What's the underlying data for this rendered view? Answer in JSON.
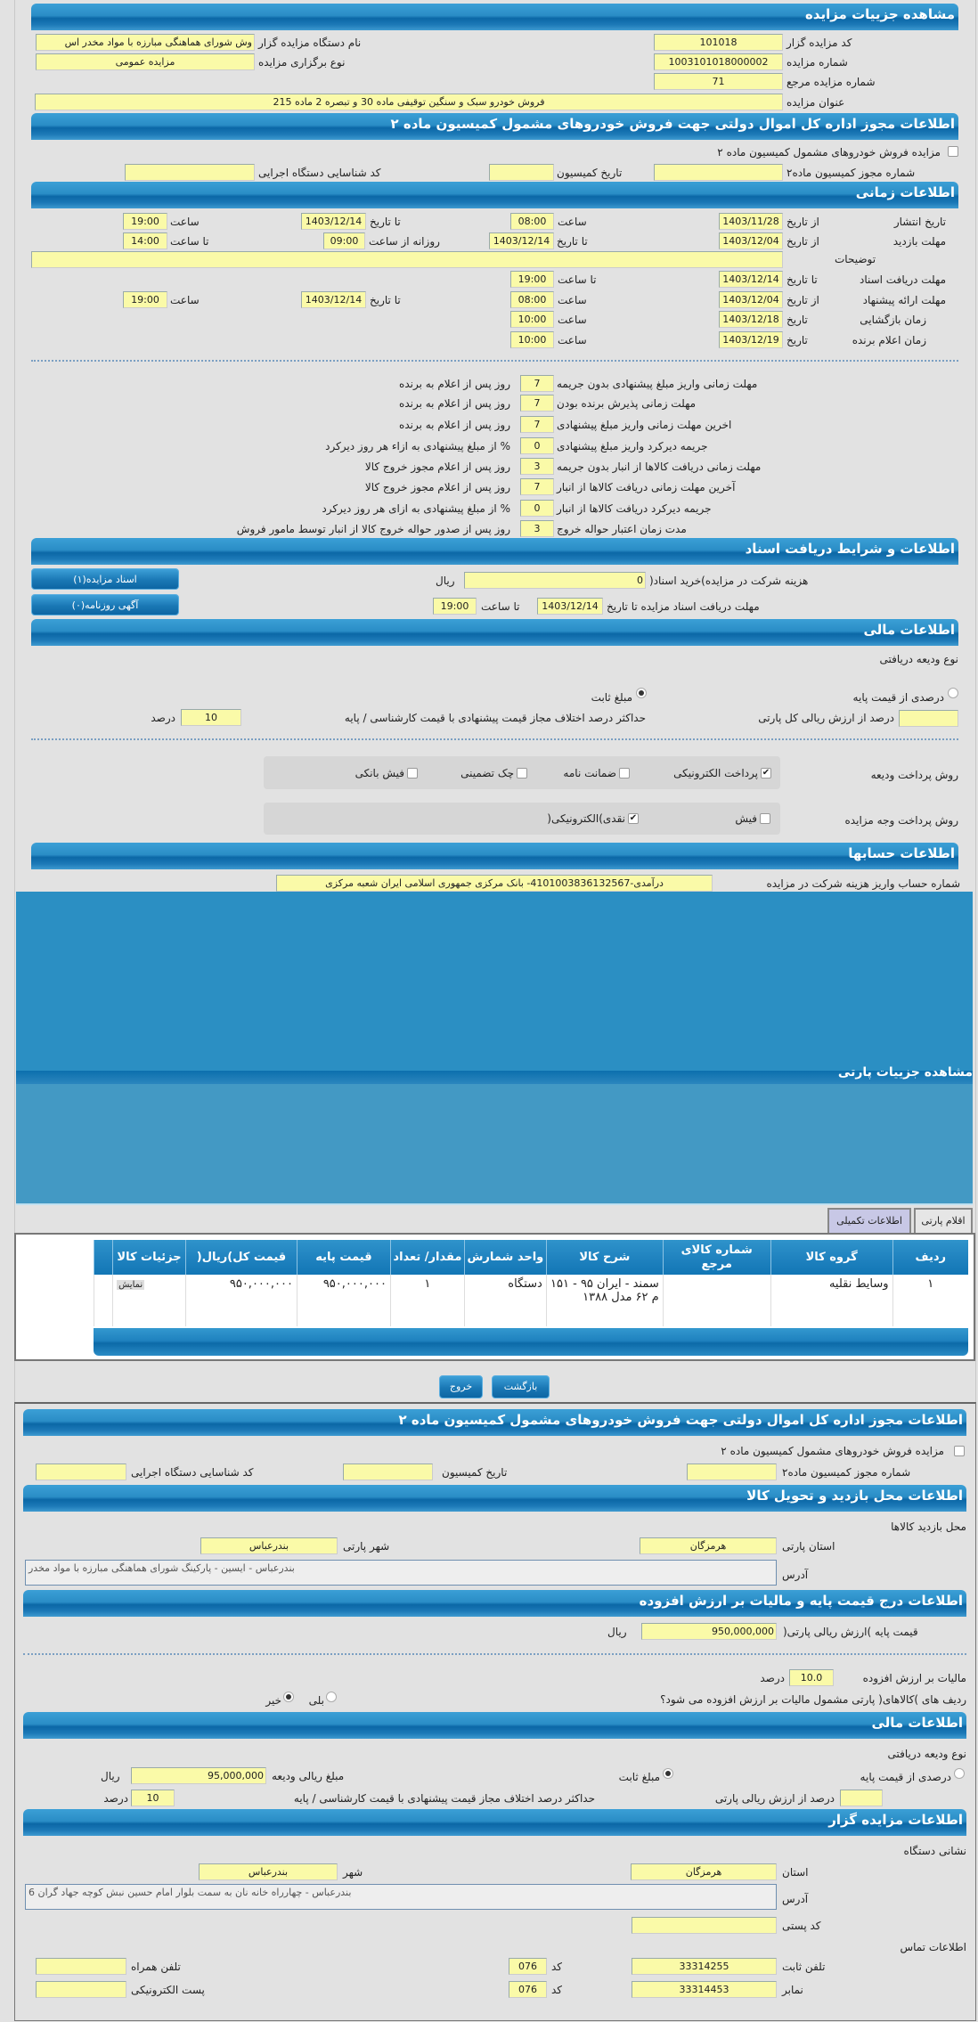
{
  "auction": {
    "header": "مشاهده جزییات مزایده",
    "code_label": "کد مزایده گزار",
    "code": "101018",
    "org_label": "نام دستگاه مزایده گزار",
    "org": "وش شورای هماهنگی مبارزه با مواد مخدر اس",
    "number_label": "شماره مزایده",
    "number": "1003101018000002",
    "type_label": "نوع برگزاری مزایده",
    "type": "مزایده عمومی",
    "ref_label": "شماره مزایده مرجع",
    "ref": "71",
    "title_label": "عنوان مزایده",
    "title": "فروش خودرو سبک و سنگین توقیفی ماده 30 و تبصره 2 ماده 215"
  },
  "permit": {
    "header": "اطلاعات مجوز اداره کل اموال دولتی جهت فروش خودروهای مشمول کمیسیون ماده ۲",
    "checkbox_label": "مزایده فروش خودروهای مشمول کمیسیون ماده ۲",
    "permit_no_label": "شماره مجوز کمیسیون ماده۲",
    "commission_date_label": "تاریخ کمیسیون",
    "exec_code_label": "کد شناسایی دستگاه اجرایی"
  },
  "timing": {
    "header": "اطلاعات زمانی",
    "from_date": "از تاریخ",
    "to_date": "تا تاریخ",
    "time": "ساعت",
    "to_time": "تا ساعت",
    "daily_from": "روزانه از ساعت",
    "date": "تاریخ",
    "publish_label": "تاریخ انتشار",
    "publish_from": "1403/11/28",
    "publish_from_time": "08:00",
    "publish_to": "1403/12/14",
    "publish_to_time": "19:00",
    "visit_label": "مهلت بازدید",
    "visit_from": "1403/12/04",
    "visit_to": "1403/12/14",
    "visit_daily_from": "09:00",
    "visit_to_time": "14:00",
    "notes_label": "توضیحات",
    "docs_label": "مهلت دریافت اسناد",
    "docs_to": "1403/12/14",
    "docs_to_time": "19:00",
    "bid_label": "مهلت ارائه پیشنهاد",
    "bid_from": "1403/12/04",
    "bid_from_time": "08:00",
    "bid_to": "1403/12/14",
    "bid_to_time": "19:00",
    "open_label": "زمان بازگشایی",
    "open_date": "1403/12/18",
    "open_time": "10:00",
    "winner_label": "زمان اعلام برنده",
    "winner_date": "1403/12/19",
    "winner_time": "10:00"
  },
  "deadlines": [
    {
      "label": "مهلت زمانی واریز مبلغ پیشنهادی بدون جریمه",
      "value": "7",
      "suffix": "روز پس از اعلام به برنده"
    },
    {
      "label": "مهلت زمانی پذیرش برنده بودن",
      "value": "7",
      "suffix": "روز پس از اعلام به برنده"
    },
    {
      "label": "اخرین مهلت زمانی واریز مبلغ پیشنهادی",
      "value": "7",
      "suffix": "روز پس از اعلام به برنده"
    },
    {
      "label": "جریمه دیرکرد واریز مبلغ پیشنهادی",
      "value": "0",
      "suffix": "% از مبلغ پیشنهادی به ازاء هر روز دیرکرد"
    },
    {
      "label": "مهلت زمانی دریافت کالاها از انبار بدون جریمه",
      "value": "3",
      "suffix": "روز پس از اعلام مجوز خروج کالا"
    },
    {
      "label": "آخرین مهلت زمانی دریافت کالاها از انبار",
      "value": "7",
      "suffix": "روز پس از اعلام مجوز خروج کالا"
    },
    {
      "label": "جریمه دیرکرد دریافت کالاها از انبار",
      "value": "0",
      "suffix": "% از مبلغ پیشنهادی به ازای هر روز دیرکرد"
    },
    {
      "label": "مدت زمان اعتبار حواله خروج",
      "value": "3",
      "suffix": "روز پس از صدور حواله خروج کالا از انبار توسط مامور فروش"
    }
  ],
  "docs": {
    "header": "اطلاعات و شرایط دریافت اسناد",
    "fee_label": "هزینه شرکت در مزایده)خرید اسناد(",
    "fee": "0",
    "currency": "ریال",
    "deadline_label": "مهلت دریافت اسناد مزایده تا تاریخ",
    "deadline_date": "1403/12/14",
    "to_time": "تا ساعت",
    "deadline_time": "19:00",
    "docs_button": "اسناد مزایده(۱)",
    "ads_button": "آگهی روزنامه(۰)"
  },
  "finance": {
    "header": "اطلاعات مالی",
    "deposit_type": "نوع ودیعه دریافتی",
    "percent_option": "درصدی از قیمت پایه",
    "fixed_option": "مبلغ ثابت",
    "selected": "fixed",
    "percent_of_total": "درصد از ارزش ریالی کل پارتی",
    "max_diff_label": "حداکثر درصد اختلاف مجاز قیمت پیشنهادی با قیمت کارشناسی / پایه",
    "max_diff": "10",
    "percent": "درصد",
    "deposit_method_label": "روش پرداخت ودیعه",
    "deposit_methods": [
      {
        "label": "پرداخت الکترونیکی",
        "checked": true
      },
      {
        "label": "ضمانت نامه",
        "checked": false
      },
      {
        "label": "چک تضمینی",
        "checked": false
      },
      {
        "label": "فیش بانکی",
        "checked": false
      }
    ],
    "payment_method_label": "روش پرداخت وجه مزایده",
    "payment_methods": [
      {
        "label": "فیش",
        "checked": false
      },
      {
        "label": "نقدی)الکترونیکی(",
        "checked": true
      }
    ]
  },
  "accounts": {
    "header": "اطلاعات حسابها",
    "label": "شماره حساب واریز هزینه شرکت در مزایده",
    "value": "درآمدی-4101003836132567- بانک مرکزی جمهوری اسلامی ایران شعبه مرکزی"
  },
  "lot": {
    "header": "مشاهده جزییات پارتی",
    "tabs": [
      {
        "label": "اقلام پارتی",
        "active": false
      },
      {
        "label": "اطلاعات تکمیلی",
        "active": true
      }
    ],
    "columns": [
      "ردیف",
      "گروه کالا",
      "شماره کالای مرجع",
      "شرح کالا",
      "واحد شمارش",
      "مقدار/ تعداد",
      "قیمت پایه",
      "قیمت کل)ریال(",
      "جزئیات کالا"
    ],
    "rows": [
      {
        "index": "۱",
        "group": "وسایط نقلیه",
        "ref": "",
        "desc": "سمند - ایران ۹۵ - ۱۵۱ م ۶۲ مدل ۱۳۸۸",
        "unit": "دستگاه",
        "qty": "۱",
        "base": "۹۵۰,۰۰۰,۰۰۰",
        "total": "۹۵۰,۰۰۰,۰۰۰",
        "details_button": "نمایش"
      }
    ],
    "back_button": "بازگشت",
    "exit_button": "خروج"
  },
  "permit2": {
    "header": "اطلاعات مجوز اداره کل اموال دولتی جهت فروش خودروهای مشمول کمیسیون ماده ۲",
    "checkbox_label": "مزایده فروش خودروهای مشمول کمیسیون ماده ۲",
    "permit_no_label": "شماره مجوز کمیسیون ماده۲",
    "commission_date_label": "تاریخ کمیسیون",
    "exec_code_label": "کد شناسایی دستگاه اجرایی"
  },
  "visit": {
    "header": "اطلاعات محل بازدید و تحویل کالا",
    "place_label": "محل بازدید کالاها",
    "province_label": "استان پارتی",
    "province": "هرمزگان",
    "city_label": "شهر پارتی",
    "city": "بندرعباس",
    "address_label": "آدرس",
    "address": "بندرعباس - ایسین - پارکینگ شورای هماهنگی مبارزه با مواد مخدر"
  },
  "pricing": {
    "header": "اطلاعات درج قیمت پایه و مالیات بر ارزش افزوده",
    "base_label": "قیمت پایه )ارزش ریالی پارتی(",
    "base": "950,000,000",
    "currency": "ریال",
    "vat_label": "مالیات بر ارزش افزوده",
    "vat": "10.0",
    "percent": "درصد",
    "vat_q": "ردیف های )کالاهای( پارتی مشمول مالیات بر ارزش افزوده می شود؟",
    "yes": "بلی",
    "no": "خیر",
    "vat_selected": "no"
  },
  "finance2": {
    "header": "اطلاعات مالی",
    "deposit_type": "نوع ودیعه دریافتی",
    "percent_option": "درصدی از قیمت پایه",
    "fixed_option": "مبلغ ثابت",
    "selected": "fixed",
    "deposit_amount_label": "مبلغ ریالی ودیعه",
    "deposit_amount": "95,000,000",
    "currency": "ریال",
    "percent_of_lot": "درصد از ارزش ریالی پارتی",
    "max_diff_label": "حداکثر درصد اختلاف مجاز قیمت پیشنهادی با قیمت کارشناسی / پایه",
    "max_diff": "10",
    "percent": "درصد"
  },
  "auctioneer": {
    "header": "اطلاعات مزایده گزار",
    "address_title": "نشانی دستگاه",
    "province_label": "استان",
    "province": "هرمزگان",
    "city_label": "شهر",
    "city": "بندرعباس",
    "address_label": "آدرس",
    "address": "بندرعباس - چهارراه خانه نان به سمت بلوار امام حسین نبش کوچه جهاد گران 6",
    "postal_label": "کد پستی",
    "contact_title": "اطلاعات تماس",
    "phone_label": "تلفن ثابت",
    "phone": "33314255",
    "code_label": "کد",
    "phone_code": "076",
    "fax_code": "076",
    "fax_label": "نمابر",
    "fax": "33314453",
    "mobile_label": "تلفن همراه",
    "email_label": "پست الکترونیکی"
  },
  "colors": {
    "header_blue": "#1a78b5",
    "field_yellow": "#fafaa8",
    "page_gray": "#e2e2e2",
    "tab_active": "#c8c8e6"
  }
}
